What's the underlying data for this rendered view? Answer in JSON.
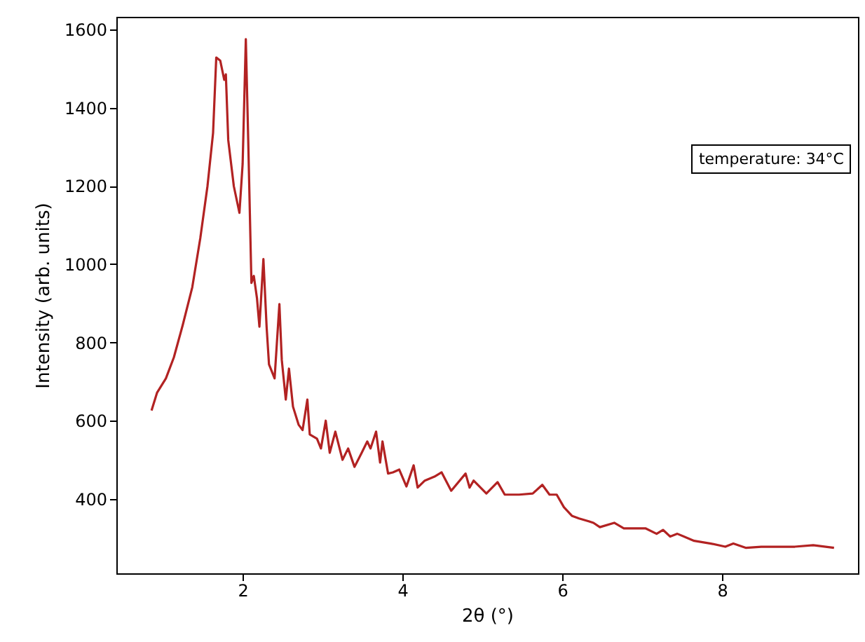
{
  "chart_data": {
    "type": "line",
    "xlabel": "2θ (°)",
    "ylabel": "Intensity (arb. units)",
    "annotations": [
      "temperature: 34°C"
    ],
    "x": [
      0.86,
      0.93,
      1.04,
      1.14,
      1.25,
      1.37,
      1.47,
      1.56,
      1.63,
      1.67,
      1.72,
      1.77,
      1.79,
      1.82,
      1.89,
      1.96,
      2.0,
      2.04,
      2.07,
      2.11,
      2.14,
      2.18,
      2.21,
      2.26,
      2.3,
      2.33,
      2.4,
      2.46,
      2.49,
      2.54,
      2.58,
      2.63,
      2.7,
      2.75,
      2.81,
      2.84,
      2.93,
      2.98,
      3.04,
      3.09,
      3.16,
      3.25,
      3.32,
      3.4,
      3.49,
      3.56,
      3.6,
      3.67,
      3.72,
      3.75,
      3.82,
      3.88,
      3.96,
      4.05,
      4.14,
      4.19,
      4.28,
      4.4,
      4.49,
      4.61,
      4.79,
      4.84,
      4.89,
      5.05,
      5.19,
      5.28,
      5.46,
      5.63,
      5.75,
      5.84,
      5.93,
      6.02,
      6.12,
      6.21,
      6.33,
      6.39,
      6.47,
      6.65,
      6.77,
      7.04,
      7.18,
      7.26,
      7.35,
      7.44,
      7.65,
      7.86,
      8.04,
      8.14,
      8.3,
      8.49,
      8.91,
      9.14,
      9.4
    ],
    "series": [
      {
        "color": "#b22222",
        "values": [
          626,
          672,
          708,
          762,
          844,
          941,
          1066,
          1199,
          1335,
          1528,
          1520,
          1471,
          1485,
          1317,
          1199,
          1131,
          1256,
          1575,
          1317,
          952,
          970,
          912,
          840,
          1013,
          840,
          744,
          708,
          898,
          755,
          654,
          733,
          636,
          590,
          576,
          654,
          565,
          554,
          529,
          600,
          518,
          572,
          500,
          529,
          482,
          518,
          547,
          529,
          572,
          493,
          547,
          465,
          468,
          475,
          432,
          486,
          429,
          447,
          457,
          468,
          421,
          465,
          429,
          447,
          414,
          443,
          411,
          411,
          414,
          436,
          411,
          411,
          379,
          357,
          350,
          343,
          339,
          328,
          339,
          325,
          325,
          311,
          321,
          304,
          311,
          293,
          286,
          278,
          286,
          275,
          278,
          278,
          282,
          275
        ]
      }
    ],
    "xlim": [
      0.42,
      9.7
    ],
    "ylim": [
      210,
      1632
    ],
    "xticks": [
      2,
      4,
      6,
      8
    ],
    "yticks": [
      400,
      600,
      800,
      1000,
      1200,
      1400,
      1600
    ],
    "grid": false,
    "line_style": "solid",
    "marker": "none"
  }
}
